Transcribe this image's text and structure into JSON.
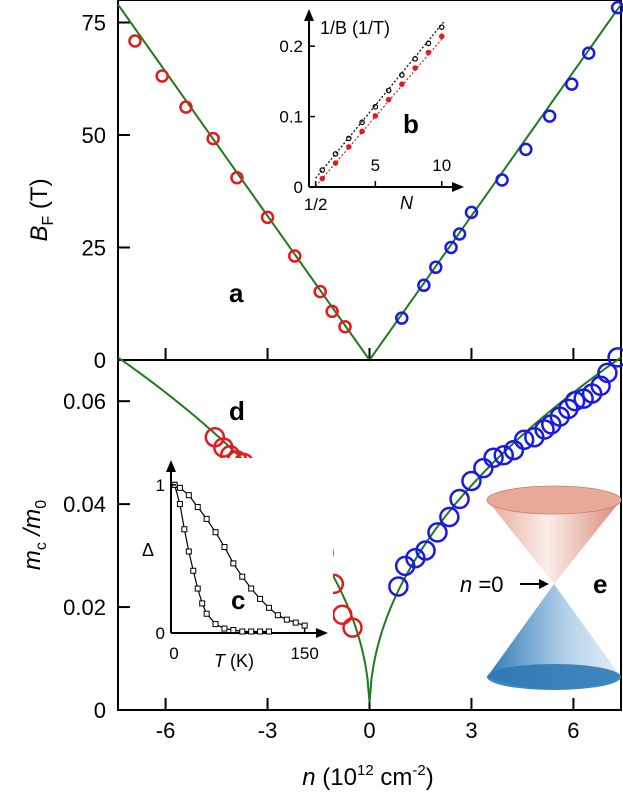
{
  "chart_data": [
    {
      "panel": "a",
      "type": "scatter",
      "ylabel": {
        "main": "B",
        "sub": "F",
        "unit": " (T)"
      },
      "xlim": [
        -7.4,
        7.4
      ],
      "ylim": [
        0,
        80
      ],
      "yticks": [
        "0",
        "25",
        "50",
        "75"
      ],
      "ytick_values": [
        0,
        25,
        50,
        75
      ],
      "panel_label": "a",
      "series": [
        {
          "color": "#e41a1c",
          "x": [
            -6.9,
            -6.1,
            -5.4,
            -4.6,
            -3.9,
            -3.0,
            -2.2,
            -1.45,
            -1.1,
            -0.72
          ],
          "y": [
            70.9,
            63.1,
            56.2,
            49.2,
            40.5,
            31.7,
            23.1,
            15.2,
            10.8,
            7.4
          ]
        },
        {
          "color": "#1a1ae4",
          "x": [
            0.95,
            1.6,
            1.95,
            2.4,
            2.65,
            3.0,
            3.9,
            4.6,
            5.3,
            5.95,
            6.45,
            7.3
          ],
          "y": [
            9.3,
            16.6,
            20.6,
            25.0,
            28.0,
            32.8,
            40.0,
            46.8,
            54.2,
            61.3,
            68.2,
            78.3
          ]
        }
      ],
      "fit_line": {
        "color": "#1e7b1e",
        "shape": "V",
        "y_at_x_minus_7.4": 79,
        "y_at_x_7.4": 79
      }
    },
    {
      "panel": "b",
      "type": "line",
      "ylabel": "1/B (1/T)",
      "xlabel": "N",
      "xlim": [
        0,
        11
      ],
      "ylim": [
        0,
        0.24
      ],
      "xticks": [
        "1/2",
        "5",
        "10"
      ],
      "xtick_values": [
        0.5,
        5,
        10
      ],
      "yticks": [
        "0",
        "0.1",
        "0.2"
      ],
      "ytick_values": [
        0,
        0.1,
        0.2
      ],
      "panel_label": "b",
      "series": [
        {
          "color": "#000000",
          "x": [
            1,
            2,
            3,
            4,
            5,
            6,
            7,
            8,
            9,
            10
          ],
          "y": [
            0.024,
            0.047,
            0.069,
            0.092,
            0.114,
            0.137,
            0.159,
            0.182,
            0.204,
            0.227
          ]
        },
        {
          "color": "#e41a1c",
          "x": [
            1,
            2,
            3,
            4,
            5,
            6,
            7,
            8,
            9,
            10
          ],
          "y": [
            0.012,
            0.034,
            0.057,
            0.079,
            0.101,
            0.124,
            0.146,
            0.169,
            0.191,
            0.214
          ]
        }
      ]
    },
    {
      "panel": "d",
      "type": "scatter",
      "ylabel": {
        "main": "m",
        "sub": "c",
        "mid": " /m",
        "sub2": "0"
      },
      "xlabel": {
        "main": "n",
        "unit": " (10",
        "sup": "12",
        "unit2": " cm",
        "sup2": "-2",
        "end": ")"
      },
      "xlim": [
        -7.4,
        7.4
      ],
      "ylim": [
        0,
        0.068
      ],
      "xticks": [
        "-6",
        "-3",
        "0",
        "3",
        "6"
      ],
      "xtick_values": [
        -6,
        -3,
        0,
        3,
        6
      ],
      "yticks": [
        "0",
        "0.02",
        "0.04",
        "0.06"
      ],
      "ytick_values": [
        0,
        0.02,
        0.04,
        0.06
      ],
      "panel_label": "d",
      "series": [
        {
          "color": "#e41a1c",
          "x": [
            -4.55,
            -4.3,
            -4.1,
            -3.9,
            -3.7,
            -3.4,
            -3.2,
            -3.0,
            -2.8,
            -2.6,
            -2.4,
            -2.2,
            -2.0,
            -1.75,
            -1.55,
            -1.35,
            -1.05,
            -0.8,
            -0.5
          ],
          "y": [
            0.053,
            0.051,
            0.0495,
            0.0485,
            0.048,
            0.0455,
            0.044,
            0.0445,
            0.0435,
            0.045,
            0.042,
            0.0395,
            0.0375,
            0.0335,
            0.0305,
            0.0305,
            0.0245,
            0.0185,
            0.016
          ]
        },
        {
          "color": "#1a1ae4",
          "x": [
            0.85,
            1.05,
            1.35,
            1.65,
            2.0,
            2.35,
            2.65,
            3.0,
            3.35,
            3.65,
            3.95,
            4.25,
            4.55,
            4.85,
            5.15,
            5.35,
            5.6,
            5.85,
            6.05,
            6.3,
            6.55,
            6.8,
            7.0,
            7.3
          ],
          "y": [
            0.024,
            0.028,
            0.0295,
            0.031,
            0.0345,
            0.0375,
            0.041,
            0.0445,
            0.047,
            0.049,
            0.0495,
            0.0505,
            0.0525,
            0.053,
            0.0545,
            0.0555,
            0.057,
            0.0585,
            0.06,
            0.0605,
            0.0615,
            0.063,
            0.0655,
            0.0685
          ]
        }
      ],
      "fit_curve": {
        "color": "#1e7b1e",
        "shape": "sqrt(|n|)",
        "y_at_x_7.4": 0.0685
      }
    },
    {
      "panel": "c",
      "type": "line",
      "ylabel": "Δ",
      "xlabel": {
        "main": "T",
        "unit": " (K)"
      },
      "xlim": [
        0,
        165
      ],
      "ylim": [
        0,
        1.1
      ],
      "xticks": [
        "0",
        "150"
      ],
      "xtick_values": [
        0,
        150
      ],
      "yticks": [
        "0",
        "1"
      ],
      "ytick_values": [
        0,
        1
      ],
      "panel_label": "c",
      "series": [
        {
          "color": "#000000",
          "x": [
            4,
            10,
            20,
            30,
            40,
            50,
            60,
            70,
            80,
            90,
            100,
            110,
            120,
            130,
            140,
            150
          ],
          "y": [
            1.0,
            0.98,
            0.93,
            0.85,
            0.77,
            0.68,
            0.58,
            0.47,
            0.38,
            0.3,
            0.23,
            0.17,
            0.12,
            0.09,
            0.07,
            0.05
          ]
        },
        {
          "color": "#000000",
          "x": [
            4,
            10,
            15,
            20,
            25,
            30,
            35,
            40,
            50,
            60,
            70,
            80,
            90,
            100,
            110
          ],
          "y": [
            1.0,
            0.87,
            0.7,
            0.55,
            0.42,
            0.3,
            0.2,
            0.13,
            0.06,
            0.03,
            0.02,
            0.01,
            0.01,
            0.01,
            0.01
          ]
        }
      ]
    }
  ],
  "inset_e": {
    "panel_label": "e",
    "arrow_label": {
      "n": "n",
      "eq": " =0"
    },
    "top_cone_color": "#d98a78",
    "bottom_cone_color": "#3a86bf"
  }
}
